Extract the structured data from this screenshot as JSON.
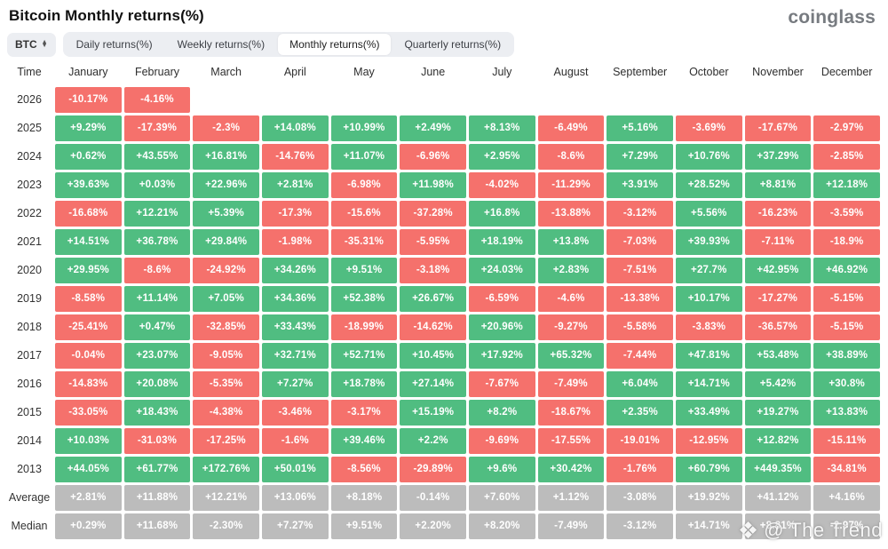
{
  "header": {
    "title": "Bitcoin Monthly returns(%)",
    "logo": "coinglass"
  },
  "controls": {
    "symbol": "BTC",
    "symbol_sort_icon": "up-down-arrows-icon",
    "tabs": [
      {
        "label": "Daily returns(%)"
      },
      {
        "label": "Weekly returns(%)"
      },
      {
        "label": "Monthly returns(%)"
      },
      {
        "label": "Quarterly returns(%)"
      }
    ],
    "active_tab": "Monthly returns(%)"
  },
  "colors": {
    "positive": "#50BD81",
    "negative": "#F5716C",
    "summary": "#BCBCBC"
  },
  "chart_data": {
    "type": "heatmap",
    "title": "Bitcoin Monthly returns(%)",
    "columns": [
      "Time",
      "January",
      "February",
      "March",
      "April",
      "May",
      "June",
      "July",
      "August",
      "September",
      "October",
      "November",
      "December"
    ],
    "rows": [
      {
        "label": "2026",
        "type": "year",
        "values": [
          "-10.17%",
          "-4.16%",
          null,
          null,
          null,
          null,
          null,
          null,
          null,
          null,
          null,
          null
        ]
      },
      {
        "label": "2025",
        "type": "year",
        "values": [
          "+9.29%",
          "-17.39%",
          "-2.3%",
          "+14.08%",
          "+10.99%",
          "+2.49%",
          "+8.13%",
          "-6.49%",
          "+5.16%",
          "-3.69%",
          "-17.67%",
          "-2.97%"
        ]
      },
      {
        "label": "2024",
        "type": "year",
        "values": [
          "+0.62%",
          "+43.55%",
          "+16.81%",
          "-14.76%",
          "+11.07%",
          "-6.96%",
          "+2.95%",
          "-8.6%",
          "+7.29%",
          "+10.76%",
          "+37.29%",
          "-2.85%"
        ]
      },
      {
        "label": "2023",
        "type": "year",
        "values": [
          "+39.63%",
          "+0.03%",
          "+22.96%",
          "+2.81%",
          "-6.98%",
          "+11.98%",
          "-4.02%",
          "-11.29%",
          "+3.91%",
          "+28.52%",
          "+8.81%",
          "+12.18%"
        ]
      },
      {
        "label": "2022",
        "type": "year",
        "values": [
          "-16.68%",
          "+12.21%",
          "+5.39%",
          "-17.3%",
          "-15.6%",
          "-37.28%",
          "+16.8%",
          "-13.88%",
          "-3.12%",
          "+5.56%",
          "-16.23%",
          "-3.59%"
        ]
      },
      {
        "label": "2021",
        "type": "year",
        "values": [
          "+14.51%",
          "+36.78%",
          "+29.84%",
          "-1.98%",
          "-35.31%",
          "-5.95%",
          "+18.19%",
          "+13.8%",
          "-7.03%",
          "+39.93%",
          "-7.11%",
          "-18.9%"
        ]
      },
      {
        "label": "2020",
        "type": "year",
        "values": [
          "+29.95%",
          "-8.6%",
          "-24.92%",
          "+34.26%",
          "+9.51%",
          "-3.18%",
          "+24.03%",
          "+2.83%",
          "-7.51%",
          "+27.7%",
          "+42.95%",
          "+46.92%"
        ]
      },
      {
        "label": "2019",
        "type": "year",
        "values": [
          "-8.58%",
          "+11.14%",
          "+7.05%",
          "+34.36%",
          "+52.38%",
          "+26.67%",
          "-6.59%",
          "-4.6%",
          "-13.38%",
          "+10.17%",
          "-17.27%",
          "-5.15%"
        ]
      },
      {
        "label": "2018",
        "type": "year",
        "values": [
          "-25.41%",
          "+0.47%",
          "-32.85%",
          "+33.43%",
          "-18.99%",
          "-14.62%",
          "+20.96%",
          "-9.27%",
          "-5.58%",
          "-3.83%",
          "-36.57%",
          "-5.15%"
        ]
      },
      {
        "label": "2017",
        "type": "year",
        "values": [
          "-0.04%",
          "+23.07%",
          "-9.05%",
          "+32.71%",
          "+52.71%",
          "+10.45%",
          "+17.92%",
          "+65.32%",
          "-7.44%",
          "+47.81%",
          "+53.48%",
          "+38.89%"
        ]
      },
      {
        "label": "2016",
        "type": "year",
        "values": [
          "-14.83%",
          "+20.08%",
          "-5.35%",
          "+7.27%",
          "+18.78%",
          "+27.14%",
          "-7.67%",
          "-7.49%",
          "+6.04%",
          "+14.71%",
          "+5.42%",
          "+30.8%"
        ]
      },
      {
        "label": "2015",
        "type": "year",
        "values": [
          "-33.05%",
          "+18.43%",
          "-4.38%",
          "-3.46%",
          "-3.17%",
          "+15.19%",
          "+8.2%",
          "-18.67%",
          "+2.35%",
          "+33.49%",
          "+19.27%",
          "+13.83%"
        ]
      },
      {
        "label": "2014",
        "type": "year",
        "values": [
          "+10.03%",
          "-31.03%",
          "-17.25%",
          "-1.6%",
          "+39.46%",
          "+2.2%",
          "-9.69%",
          "-17.55%",
          "-19.01%",
          "-12.95%",
          "+12.82%",
          "-15.11%"
        ]
      },
      {
        "label": "2013",
        "type": "year",
        "values": [
          "+44.05%",
          "+61.77%",
          "+172.76%",
          "+50.01%",
          "-8.56%",
          "-29.89%",
          "+9.6%",
          "+30.42%",
          "-1.76%",
          "+60.79%",
          "+449.35%",
          "-34.81%"
        ]
      },
      {
        "label": "Average",
        "type": "summary",
        "values": [
          "+2.81%",
          "+11.88%",
          "+12.21%",
          "+13.06%",
          "+8.18%",
          "-0.14%",
          "+7.60%",
          "+1.12%",
          "-3.08%",
          "+19.92%",
          "+41.12%",
          "+4.16%"
        ]
      },
      {
        "label": "Median",
        "type": "summary",
        "values": [
          "+0.29%",
          "+11.68%",
          "-2.30%",
          "+7.27%",
          "+9.51%",
          "+2.20%",
          "+8.20%",
          "-7.49%",
          "-3.12%",
          "+14.71%",
          "+8.81%",
          "-2.97%"
        ]
      }
    ]
  },
  "watermark": {
    "icon": "diamond-icon",
    "text": "@ The Trend"
  }
}
